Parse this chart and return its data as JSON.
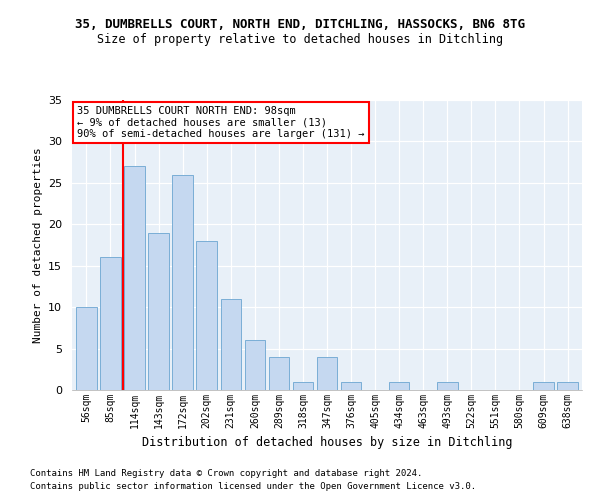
{
  "title": "35, DUMBRELLS COURT, NORTH END, DITCHLING, HASSOCKS, BN6 8TG",
  "subtitle": "Size of property relative to detached houses in Ditchling",
  "xlabel": "Distribution of detached houses by size in Ditchling",
  "ylabel": "Number of detached properties",
  "categories": [
    "56sqm",
    "85sqm",
    "114sqm",
    "143sqm",
    "172sqm",
    "202sqm",
    "231sqm",
    "260sqm",
    "289sqm",
    "318sqm",
    "347sqm",
    "376sqm",
    "405sqm",
    "434sqm",
    "463sqm",
    "493sqm",
    "522sqm",
    "551sqm",
    "580sqm",
    "609sqm",
    "638sqm"
  ],
  "values": [
    10,
    16,
    27,
    19,
    26,
    18,
    11,
    6,
    4,
    1,
    4,
    1,
    0,
    1,
    0,
    1,
    0,
    0,
    0,
    1,
    1
  ],
  "bar_color": "#c5d8f0",
  "bar_edge_color": "#7aaed6",
  "ref_line_x": 1.5,
  "annotation_title": "35 DUMBRELLS COURT NORTH END: 98sqm",
  "annotation_line1": "← 9% of detached houses are smaller (13)",
  "annotation_line2": "90% of semi-detached houses are larger (131) →",
  "ylim": [
    0,
    35
  ],
  "yticks": [
    0,
    5,
    10,
    15,
    20,
    25,
    30,
    35
  ],
  "bg_color": "#e8f0f8",
  "footer1": "Contains HM Land Registry data © Crown copyright and database right 2024.",
  "footer2": "Contains public sector information licensed under the Open Government Licence v3.0."
}
